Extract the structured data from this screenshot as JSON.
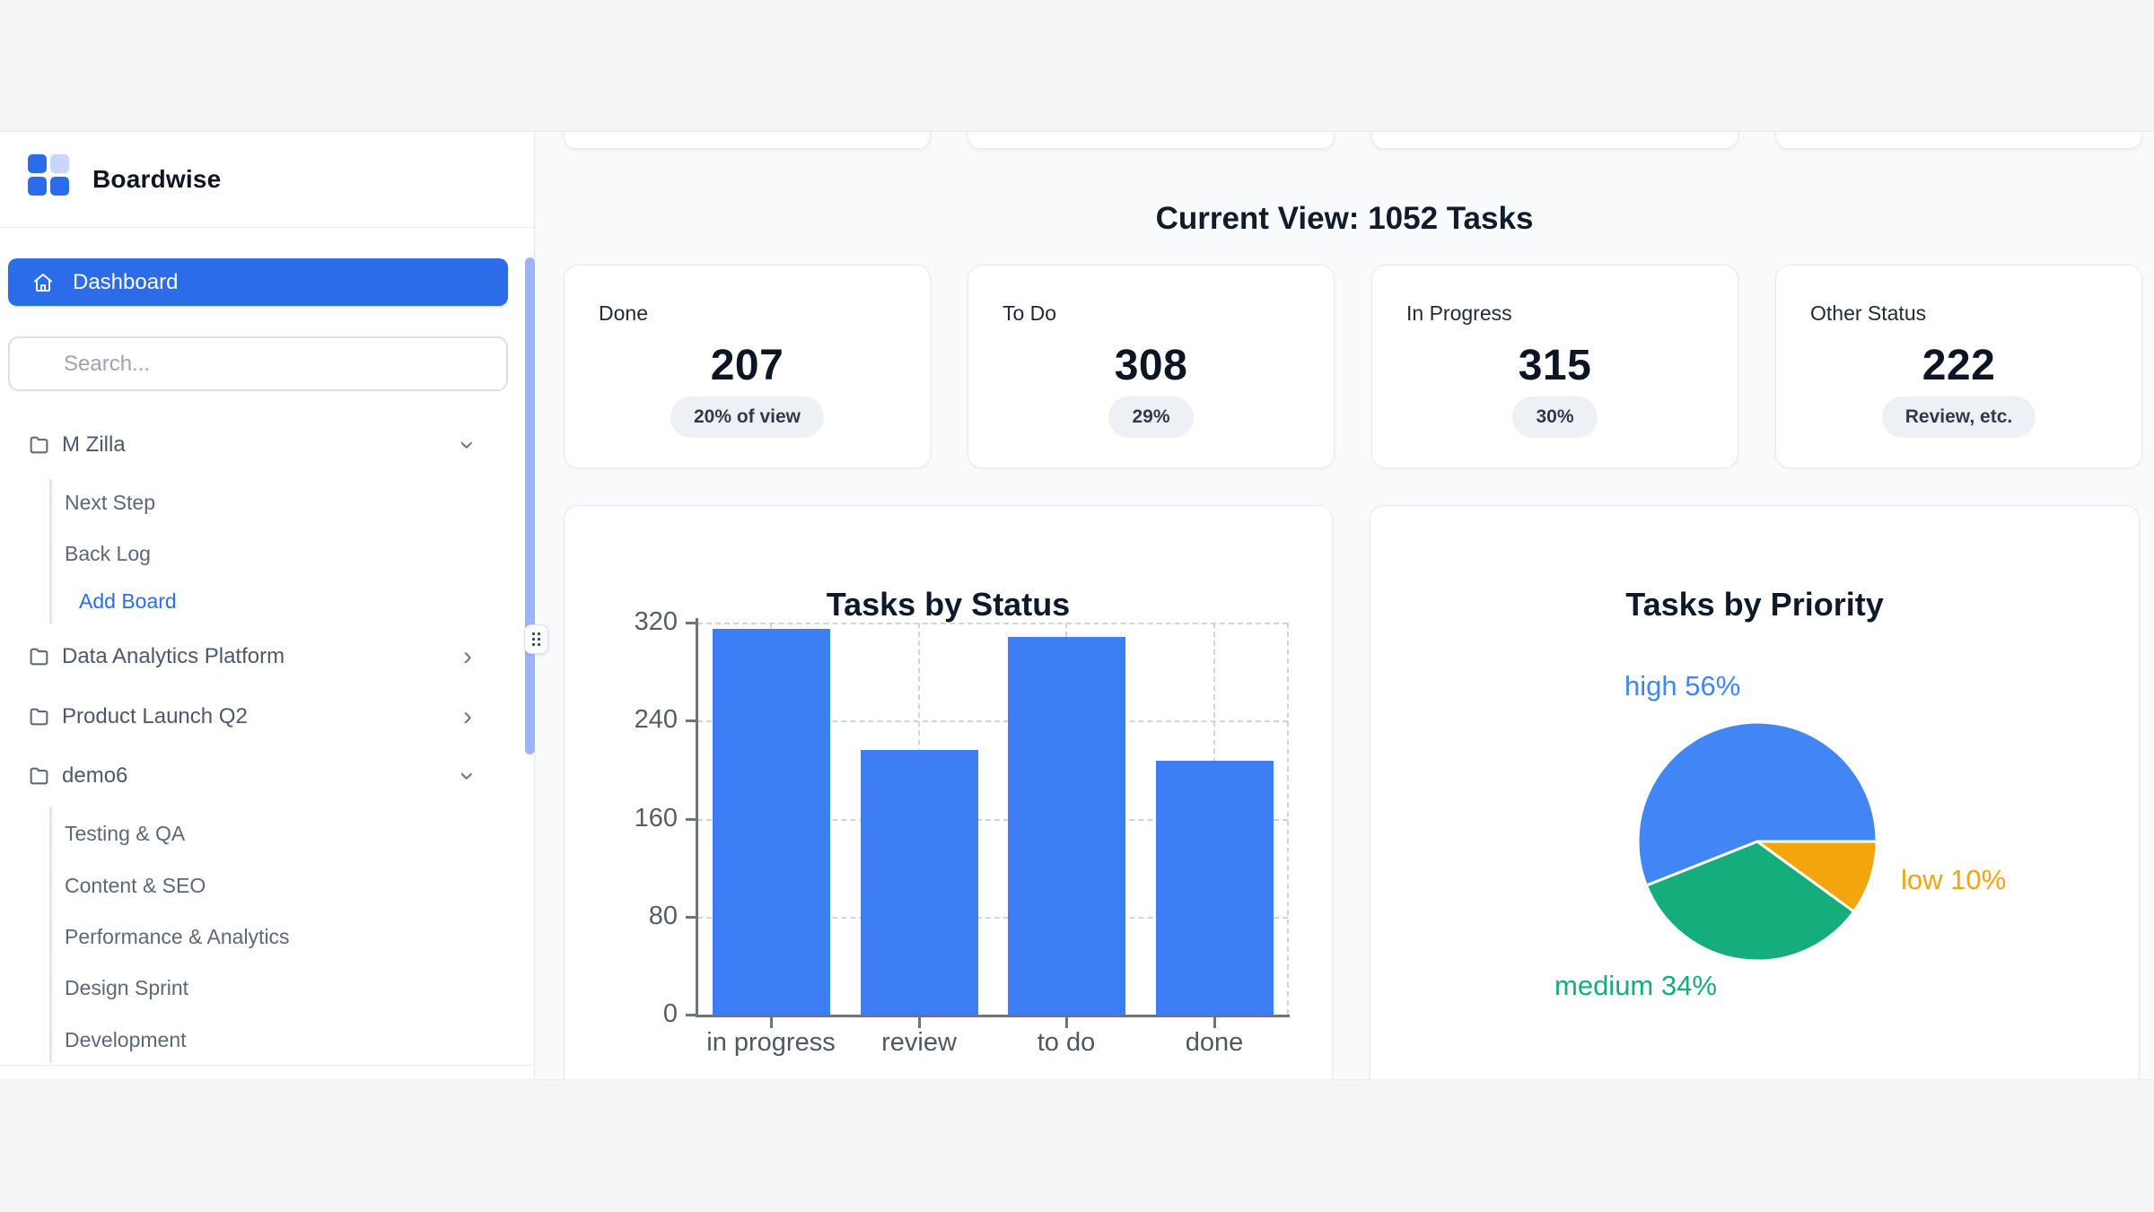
{
  "brand": {
    "name": "Boardwise"
  },
  "sidebar": {
    "dashboard_label": "Dashboard",
    "search_placeholder": "Search...",
    "boards": [
      {
        "label": "M Zilla",
        "chevron": "down",
        "children": [
          {
            "label": "Next Step"
          },
          {
            "label": "Back Log"
          },
          {
            "label": "Add Board",
            "accent": true
          }
        ]
      },
      {
        "label": "Data Analytics Platform",
        "chevron": "right",
        "children": []
      },
      {
        "label": "Product Launch Q2",
        "chevron": "right",
        "children": []
      },
      {
        "label": "demo6",
        "chevron": "down",
        "children": [
          {
            "label": "Testing & QA"
          },
          {
            "label": "Content & SEO"
          },
          {
            "label": "Performance & Analytics"
          },
          {
            "label": "Design Sprint"
          },
          {
            "label": "Development"
          }
        ]
      }
    ]
  },
  "header": {
    "title": "Current View: 1052 Tasks"
  },
  "stats": [
    {
      "label": "Done",
      "value": "207",
      "badge": "20% of view"
    },
    {
      "label": "To Do",
      "value": "308",
      "badge": "29%"
    },
    {
      "label": "In Progress",
      "value": "315",
      "badge": "30%"
    },
    {
      "label": "Other Status",
      "value": "222",
      "badge": "Review, etc."
    }
  ],
  "colors": {
    "primary_blue": "#2d6ce9",
    "bar_blue": "#3e7ef5",
    "pie_high_blue": "#4285f4",
    "pie_medium_green": "#15ad7b",
    "pie_low_orange": "#f2a50c",
    "scrollbar_thumb": "#9eb3f8",
    "card_background": "#ffffff",
    "main_background": "#f8fafc",
    "outer_background": "#f3f5f7"
  },
  "chart_data": [
    {
      "type": "bar",
      "title": "Tasks by Status",
      "categories": [
        "in progress",
        "review",
        "to do",
        "done"
      ],
      "values": [
        315,
        216,
        308,
        207
      ],
      "xlabel": "",
      "ylabel": "",
      "ylim": [
        0,
        320
      ],
      "yticks": [
        0,
        80,
        160,
        240,
        320
      ],
      "grid": "dashed",
      "legend": "none",
      "bar_color": "#3e7ef5"
    },
    {
      "type": "pie",
      "title": "Tasks by Priority",
      "slices_clockwise_from_east": [
        {
          "key": "low",
          "label": "low",
          "value": 10,
          "color": "#f2a50c"
        },
        {
          "key": "medium",
          "label": "medium",
          "value": 34,
          "color": "#15ad7b"
        },
        {
          "key": "high",
          "label": "high",
          "value": 56,
          "color": "#4285f4"
        }
      ],
      "unit": "%",
      "labels_display": [
        {
          "key": "high",
          "text": "high 56%",
          "color": "#4285f4"
        },
        {
          "key": "low",
          "text": "low 10%",
          "color": "#f2a50c"
        },
        {
          "key": "medium",
          "text": "medium 34%",
          "color": "#15ad7b"
        }
      ]
    }
  ]
}
